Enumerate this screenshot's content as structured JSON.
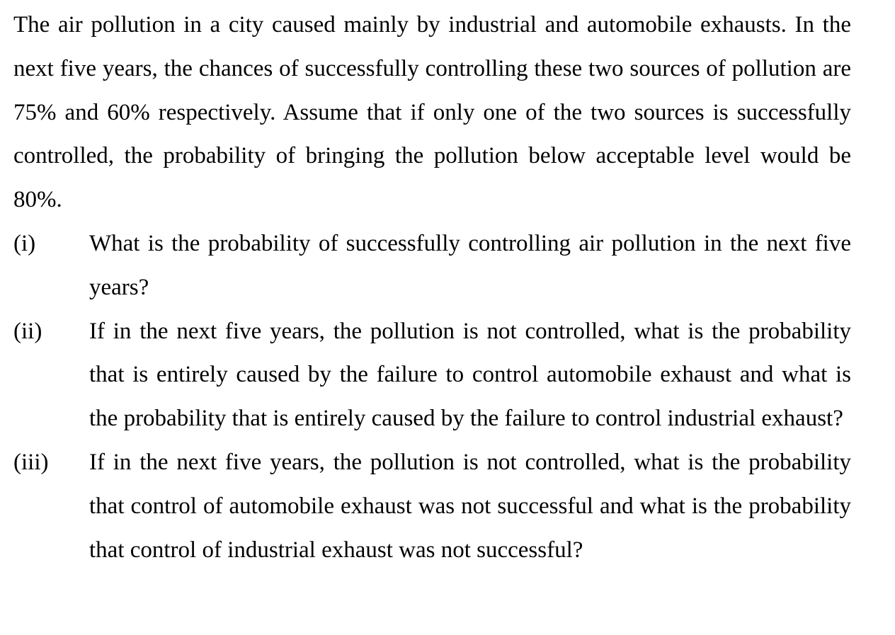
{
  "intro": "The air pollution in a city caused mainly by industrial and automobile exhausts. In the next five years, the chances of successfully controlling these two sources of pollution are 75% and 60% respectively. Assume that if only one of the two sources is successfully controlled, the probability of bringing the pollution below acceptable level would be 80%.",
  "questions": [
    {
      "number": "(i)",
      "text": "What is the probability of successfully controlling air pollution in the next five years?"
    },
    {
      "number": "(ii)",
      "text": "If in the next five years, the pollution is not controlled, what is the probability that is entirely caused by the failure to control automobile exhaust and what is the probability that is entirely caused by the failure to control industrial exhaust?"
    },
    {
      "number": "(iii)",
      "text": "If in the next five years, the pollution is not controlled, what is the probability that control of automobile exhaust was not successful and what is the probability that control of industrial exhaust was not successful?"
    }
  ]
}
